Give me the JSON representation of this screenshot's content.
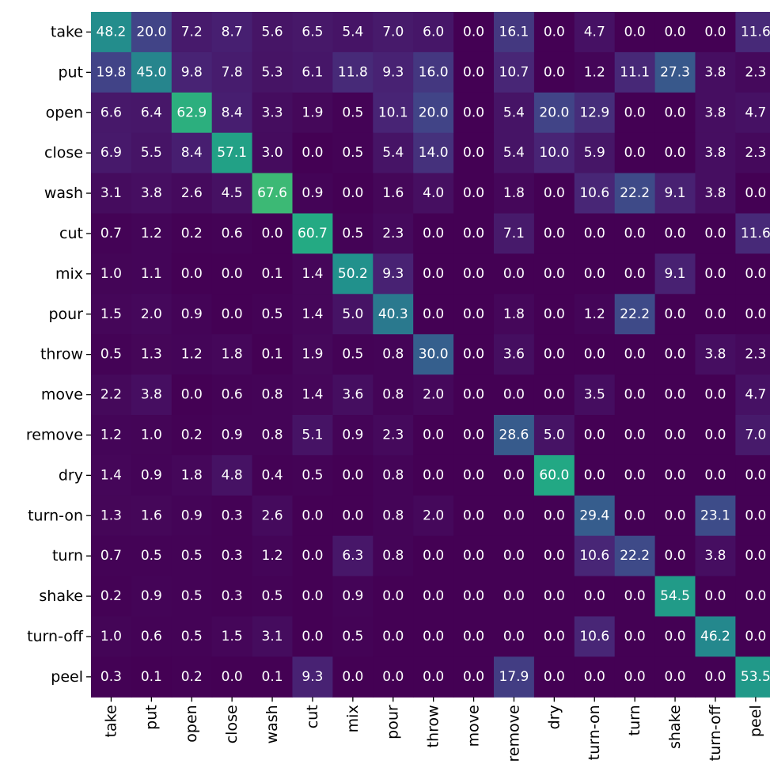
{
  "chart_data": {
    "type": "heatmap",
    "title": "",
    "xlabel": "",
    "ylabel": "",
    "colormap": "viridis",
    "value_range": [
      0,
      100
    ],
    "y_labels": [
      "take",
      "put",
      "open",
      "close",
      "wash",
      "cut",
      "mix",
      "pour",
      "throw",
      "move",
      "remove",
      "dry",
      "turn-on",
      "turn",
      "shake",
      "turn-off",
      "peel"
    ],
    "x_labels": [
      "take",
      "put",
      "open",
      "close",
      "wash",
      "cut",
      "mix",
      "pour",
      "throw",
      "move",
      "remove",
      "dry",
      "turn-on",
      "turn",
      "shake",
      "turn-off",
      "peel"
    ],
    "values": [
      [
        "48.2",
        "20.0",
        "7.2",
        "8.7",
        "5.6",
        "6.5",
        "5.4",
        "7.0",
        "6.0",
        "0.0",
        "16.1",
        "0.0",
        "4.7",
        "0.0",
        "0.0",
        "0.0",
        "11.6"
      ],
      [
        "19.8",
        "45.0",
        "9.8",
        "7.8",
        "5.3",
        "6.1",
        "11.8",
        "9.3",
        "16.0",
        "0.0",
        "10.7",
        "0.0",
        "1.2",
        "11.1",
        "27.3",
        "3.8",
        "2.3"
      ],
      [
        "6.6",
        "6.4",
        "62.9",
        "8.4",
        "3.3",
        "1.9",
        "0.5",
        "10.1",
        "20.0",
        "0.0",
        "5.4",
        "20.0",
        "12.9",
        "0.0",
        "0.0",
        "3.8",
        "4.7"
      ],
      [
        "6.9",
        "5.5",
        "8.4",
        "57.1",
        "3.0",
        "0.0",
        "0.5",
        "5.4",
        "14.0",
        "0.0",
        "5.4",
        "10.0",
        "5.9",
        "0.0",
        "0.0",
        "3.8",
        "2.3"
      ],
      [
        "3.1",
        "3.8",
        "2.6",
        "4.5",
        "67.6",
        "0.9",
        "0.0",
        "1.6",
        "4.0",
        "0.0",
        "1.8",
        "0.0",
        "10.6",
        "22.2",
        "9.1",
        "3.8",
        "0.0"
      ],
      [
        "0.7",
        "1.2",
        "0.2",
        "0.6",
        "0.0",
        "60.7",
        "0.5",
        "2.3",
        "0.0",
        "0.0",
        "7.1",
        "0.0",
        "0.0",
        "0.0",
        "0.0",
        "0.0",
        "11.6"
      ],
      [
        "1.0",
        "1.1",
        "0.0",
        "0.0",
        "0.1",
        "1.4",
        "50.2",
        "9.3",
        "0.0",
        "0.0",
        "0.0",
        "0.0",
        "0.0",
        "0.0",
        "9.1",
        "0.0",
        "0.0"
      ],
      [
        "1.5",
        "2.0",
        "0.9",
        "0.0",
        "0.5",
        "1.4",
        "5.0",
        "40.3",
        "0.0",
        "0.0",
        "1.8",
        "0.0",
        "1.2",
        "22.2",
        "0.0",
        "0.0",
        "0.0"
      ],
      [
        "0.5",
        "1.3",
        "1.2",
        "1.8",
        "0.1",
        "1.9",
        "0.5",
        "0.8",
        "30.0",
        "0.0",
        "3.6",
        "0.0",
        "0.0",
        "0.0",
        "0.0",
        "3.8",
        "2.3"
      ],
      [
        "2.2",
        "3.8",
        "0.0",
        "0.6",
        "0.8",
        "1.4",
        "3.6",
        "0.8",
        "2.0",
        "0.0",
        "0.0",
        "0.0",
        "3.5",
        "0.0",
        "0.0",
        "0.0",
        "4.7"
      ],
      [
        "1.2",
        "1.0",
        "0.2",
        "0.9",
        "0.8",
        "5.1",
        "0.9",
        "2.3",
        "0.0",
        "0.0",
        "28.6",
        "5.0",
        "0.0",
        "0.0",
        "0.0",
        "0.0",
        "7.0"
      ],
      [
        "1.4",
        "0.9",
        "1.8",
        "4.8",
        "0.4",
        "0.5",
        "0.0",
        "0.8",
        "0.0",
        "0.0",
        "0.0",
        "60.0",
        "0.0",
        "0.0",
        "0.0",
        "0.0",
        "0.0"
      ],
      [
        "1.3",
        "1.6",
        "0.9",
        "0.3",
        "2.6",
        "0.0",
        "0.0",
        "0.8",
        "2.0",
        "0.0",
        "0.0",
        "0.0",
        "29.4",
        "0.0",
        "0.0",
        "23.1",
        "0.0"
      ],
      [
        "0.7",
        "0.5",
        "0.5",
        "0.3",
        "1.2",
        "0.0",
        "6.3",
        "0.8",
        "0.0",
        "0.0",
        "0.0",
        "0.0",
        "10.6",
        "22.2",
        "0.0",
        "3.8",
        "0.0"
      ],
      [
        "0.2",
        "0.9",
        "0.5",
        "0.3",
        "0.5",
        "0.0",
        "0.9",
        "0.0",
        "0.0",
        "0.0",
        "0.0",
        "0.0",
        "0.0",
        "0.0",
        "54.5",
        "0.0",
        "0.0"
      ],
      [
        "1.0",
        "0.6",
        "0.5",
        "1.5",
        "3.1",
        "0.0",
        "0.5",
        "0.0",
        "0.0",
        "0.0",
        "0.0",
        "0.0",
        "10.6",
        "0.0",
        "0.0",
        "46.2",
        "0.0"
      ],
      [
        "0.3",
        "0.1",
        "0.2",
        "0.0",
        "0.1",
        "9.3",
        "0.0",
        "0.0",
        "0.0",
        "0.0",
        "17.9",
        "0.0",
        "0.0",
        "0.0",
        "0.0",
        "0.0",
        "53.5"
      ]
    ],
    "cell_text_color": "#ffffff",
    "tick_color": "#000000"
  }
}
